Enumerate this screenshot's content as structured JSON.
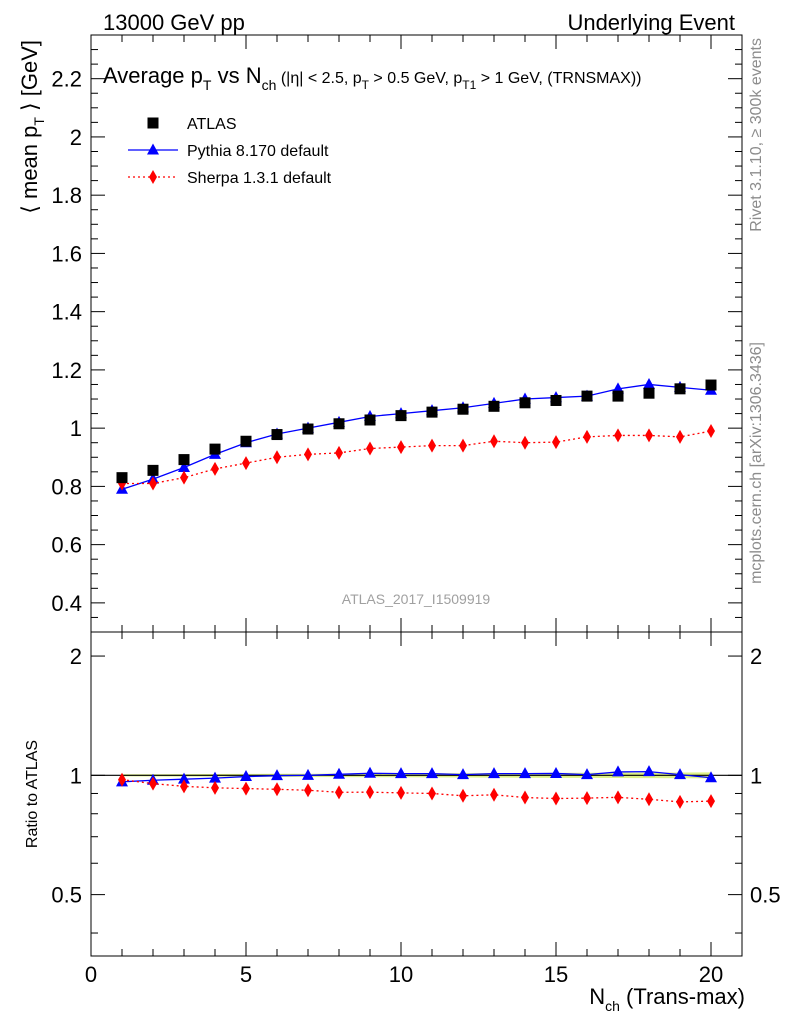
{
  "header": {
    "left": "13000 GeV pp",
    "right": "Underlying Event"
  },
  "title_parts": {
    "main": "Average p",
    "main_sub": "T",
    "vs": " vs N",
    "vs_sub": "ch",
    "cuts_a": " (|η| < 2.5, p",
    "cuts_a_sub": "T",
    "cuts_b": " > 0.5 GeV, p",
    "cuts_b_sub": "T1",
    "cuts_c": " > 1 GeV, (TRNSMAX))"
  },
  "side_labels": {
    "rivet": "Rivet 3.1.10, ≥ 300k events",
    "mcplots": "mcplots.cern.ch [arXiv:1306.3436]"
  },
  "analysis_id": "ATLAS_2017_I1509919",
  "axes": {
    "ylabel_parts": {
      "a": "⟨ mean p",
      "sub": "T",
      "b": " ⟩ [GeV]"
    },
    "ratio_ylabel": "Ratio to ATLAS",
    "xlabel_parts": {
      "a": "N",
      "sub": "ch",
      "b": " (Trans-max)"
    }
  },
  "chart_data": {
    "type": "scatter",
    "x": [
      1,
      2,
      3,
      4,
      5,
      6,
      7,
      8,
      9,
      10,
      11,
      12,
      13,
      14,
      15,
      16,
      17,
      18,
      19,
      20
    ],
    "xlim": [
      0,
      21
    ],
    "ylim": [
      0.3,
      2.35
    ],
    "xticks": [
      "0",
      "5",
      "10",
      "15",
      "20"
    ],
    "yticks": [
      "0.4",
      "0.6",
      "0.8",
      "1",
      "1.2",
      "1.4",
      "1.6",
      "1.8",
      "2",
      "2.2"
    ],
    "ratio_ylim": [
      0.35,
      2.3
    ],
    "ratio_yticks": [
      "0.5",
      "1",
      "2"
    ],
    "ratio_log_scale": true,
    "legend_position": "top-left",
    "series": [
      {
        "name": "ATLAS",
        "color": "#000000",
        "marker": "square",
        "values": [
          0.83,
          0.855,
          0.892,
          0.928,
          0.955,
          0.978,
          0.997,
          1.015,
          1.028,
          1.043,
          1.055,
          1.065,
          1.075,
          1.087,
          1.095,
          1.11,
          1.11,
          1.12,
          1.135,
          1.148
        ],
        "ratio": [
          1,
          1,
          1,
          1,
          1,
          1,
          1,
          1,
          1,
          1,
          1,
          1,
          1,
          1,
          1,
          1,
          1,
          1,
          1,
          1
        ]
      },
      {
        "name": "Pythia 8.170 default",
        "color": "#0000ff",
        "marker": "triangle",
        "line": "solid",
        "values": [
          0.79,
          0.825,
          0.865,
          0.91,
          0.95,
          0.98,
          1.0,
          1.02,
          1.04,
          1.05,
          1.06,
          1.07,
          1.085,
          1.1,
          1.105,
          1.11,
          1.135,
          1.15,
          1.14,
          1.13
        ],
        "ratio": [
          0.963,
          0.972,
          0.978,
          0.984,
          0.993,
          0.998,
          1.0,
          1.006,
          1.012,
          1.01,
          1.01,
          1.004,
          1.01,
          1.01,
          1.011,
          1.004,
          1.02,
          1.022,
          1.004,
          0.986
        ]
      },
      {
        "name": "Sherpa 1.3.1 default",
        "color": "#ff0000",
        "marker": "diamond",
        "line": "dotted",
        "values": [
          0.81,
          0.81,
          0.83,
          0.86,
          0.88,
          0.9,
          0.91,
          0.915,
          0.93,
          0.935,
          0.94,
          0.94,
          0.955,
          0.95,
          0.952,
          0.97,
          0.975,
          0.975,
          0.97,
          0.99
        ],
        "ratio": [
          0.975,
          0.953,
          0.938,
          0.93,
          0.926,
          0.922,
          0.917,
          0.906,
          0.907,
          0.903,
          0.9,
          0.888,
          0.893,
          0.879,
          0.874,
          0.876,
          0.88,
          0.87,
          0.857,
          0.861
        ]
      }
    ]
  }
}
